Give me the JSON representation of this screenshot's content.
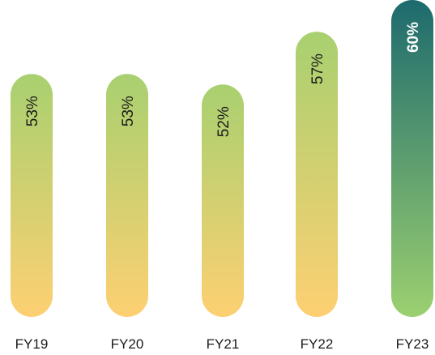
{
  "chart_data": {
    "type": "bar",
    "categories": [
      "FY19",
      "FY20",
      "FY21",
      "FY22",
      "FY23"
    ],
    "values": [
      53,
      53,
      52,
      57,
      60
    ],
    "labels": [
      "53%",
      "53%",
      "52%",
      "57%",
      "60%"
    ],
    "highlight_index": 4,
    "ylim": [
      0,
      60
    ],
    "grid": false,
    "title": "",
    "xlabel": "",
    "ylabel": ""
  },
  "colors": {
    "bar_top": "#a8d070",
    "bar_bottom": "#fdd072",
    "highlight_top": "#1d6a6e",
    "highlight_bottom": "#9cd070",
    "label_text": "#1a1a1a",
    "highlight_label_text": "#ffffff"
  }
}
